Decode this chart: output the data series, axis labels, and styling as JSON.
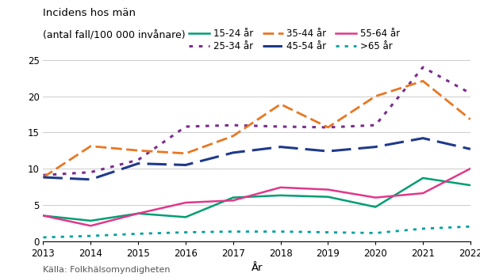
{
  "title_line1": "Incidens hos män",
  "title_line2": "(antal fall/100 000 invånare)",
  "xlabel": "År",
  "source": "Källa: Folkhälsomyndigheten",
  "years": [
    2013,
    2014,
    2015,
    2016,
    2017,
    2018,
    2019,
    2020,
    2021,
    2022
  ],
  "series": [
    {
      "label": "15-24 år",
      "color": "#009E73",
      "linestyle": "solid",
      "linewidth": 1.8,
      "dash": null,
      "values": [
        3.5,
        2.8,
        3.8,
        3.3,
        6.0,
        6.3,
        6.1,
        4.7,
        8.7,
        7.7
      ]
    },
    {
      "label": "25-34 år",
      "color": "#7B2D8B",
      "linestyle": "dotted",
      "linewidth": 2.2,
      "dash": [
        1,
        2
      ],
      "values": [
        9.1,
        9.5,
        11.2,
        15.8,
        16.0,
        15.8,
        15.7,
        16.0,
        24.0,
        20.4
      ]
    },
    {
      "label": "35-44 år",
      "color": "#E87722",
      "linestyle": "dashed",
      "linewidth": 2.0,
      "dash": [
        5,
        2
      ],
      "values": [
        8.8,
        13.1,
        12.5,
        12.1,
        14.5,
        18.9,
        15.7,
        20.0,
        22.1,
        16.8
      ]
    },
    {
      "label": "45-54 år",
      "color": "#1F3A8A",
      "linestyle": "dashed",
      "linewidth": 2.2,
      "dash": [
        8,
        3
      ],
      "values": [
        8.8,
        8.5,
        10.7,
        10.5,
        12.2,
        13.0,
        12.4,
        13.0,
        14.2,
        12.7
      ]
    },
    {
      "label": "55-64 år",
      "color": "#E0388A",
      "linestyle": "solid",
      "linewidth": 1.8,
      "dash": null,
      "values": [
        3.5,
        2.1,
        3.8,
        5.3,
        5.6,
        7.4,
        7.1,
        6.0,
        6.6,
        10.0
      ]
    },
    {
      "label": ">65 år",
      "color": "#00A0A0",
      "linestyle": "dotted",
      "linewidth": 2.0,
      "dash": [
        1,
        2
      ],
      "values": [
        0.5,
        0.7,
        1.0,
        1.2,
        1.3,
        1.3,
        1.2,
        1.1,
        1.7,
        2.0
      ]
    }
  ],
  "ylim": [
    0,
    25
  ],
  "yticks": [
    0,
    5,
    10,
    15,
    20,
    25
  ],
  "background_color": "#ffffff",
  "grid_color": "#cccccc",
  "title_fontsize": 9.5,
  "tick_fontsize": 8.5,
  "xlabel_fontsize": 9.5,
  "source_fontsize": 8,
  "legend_fontsize": 8.5
}
